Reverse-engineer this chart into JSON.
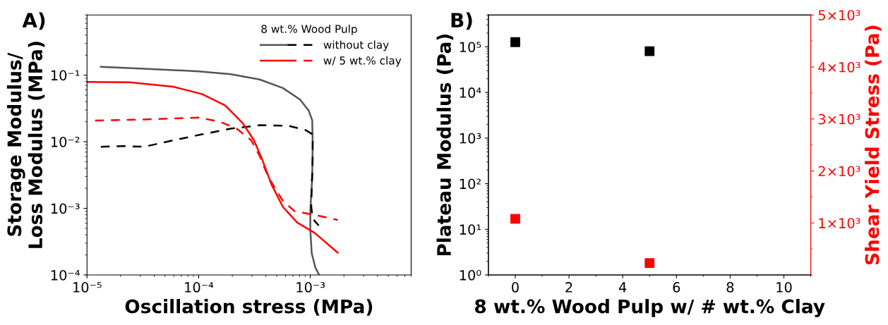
{
  "chart_data": [
    {
      "type": "line",
      "title": "A)",
      "xlabel": "Oscillation stress (MPa)",
      "ylabel": "Storage Modulus/\nLoss Modulus (MPa)",
      "log": "xy",
      "legend": "top right",
      "legend_title": "8 wt.% Wood Pulp",
      "grid": false,
      "marker": "none",
      "xlim": [
        1e-05,
        0.008
      ],
      "ylim": [
        0.0001,
        0.8
      ],
      "xticks": [
        {
          "value": 1e-05,
          "label": "10⁻⁵"
        },
        {
          "value": 0.0001,
          "label": "10⁻⁴"
        },
        {
          "value": 0.001,
          "label": "10⁻³"
        }
      ],
      "yticks": [
        {
          "value": 0.0001,
          "label": "10⁻⁴"
        },
        {
          "value": 0.001,
          "label": "10⁻³"
        },
        {
          "value": 0.01,
          "label": "10⁻²"
        },
        {
          "value": 0.1,
          "label": "10⁻¹"
        }
      ],
      "series": [
        {
          "color": "#555555",
          "line_style": "solid",
          "x": [
            1.33e-05,
            3.26e-05,
            0.0001,
            0.000194,
            0.000352,
            0.000568,
            0.00081,
            0.00097,
            0.00104,
            0.00105,
            0.00104,
            0.001,
            0.001,
            0.00103,
            0.00111,
            0.0012
          ],
          "values": [
            0.133,
            0.125,
            0.114,
            0.103,
            0.086,
            0.064,
            0.043,
            0.029,
            0.021,
            0.0095,
            0.0029,
            0.00095,
            0.00047,
            0.00021,
            0.000129,
            0.0001
          ]
        },
        {
          "name": "without clay",
          "color": "#000000",
          "line_style": "dashed",
          "x": [
            1.33e-05,
            2.14e-05,
            3.26e-05,
            5.9e-05,
            0.000107,
            0.000194,
            0.000352,
            0.00064,
            0.00091,
            0.00105,
            0.00105,
            0.00103,
            0.00102,
            0.00105,
            0.00119
          ],
          "values": [
            0.0084,
            0.0086,
            0.0084,
            0.0105,
            0.0129,
            0.0157,
            0.0177,
            0.0173,
            0.0149,
            0.0129,
            0.0058,
            0.0021,
            0.00105,
            0.0007,
            0.00055
          ]
        },
        {
          "color": "#ff0000",
          "line_style": "solid",
          "x": [
            1e-05,
            2.42e-05,
            5.9e-05,
            0.000107,
            0.000173,
            0.000247,
            0.000313,
            0.000374,
            0.000448,
            0.000568,
            0.000766,
            0.00109,
            0.00176
          ],
          "values": [
            0.079,
            0.078,
            0.067,
            0.052,
            0.035,
            0.0192,
            0.0105,
            0.0052,
            0.0023,
            0.00105,
            0.00061,
            0.00043,
            0.000216
          ]
        },
        {
          "name": "w/ 5 wt.% clay",
          "color": "#ff0000",
          "line_style": "dashed",
          "x": [
            1.18e-05,
            3.26e-05,
            0.0001,
            0.000153,
            0.000219,
            0.000296,
            0.000352,
            0.000422,
            0.000568,
            0.00072,
            0.00116,
            0.00176
          ],
          "values": [
            0.0208,
            0.0216,
            0.023,
            0.0201,
            0.0157,
            0.0105,
            0.0061,
            0.0029,
            0.00129,
            0.00091,
            0.00078,
            0.00067
          ]
        }
      ]
    },
    {
      "type": "scatter",
      "title": "B)",
      "xlabel": "8 wt.% Wood Pulp w/ # wt.% Clay",
      "ylabel": "Plateau Modulus (Pa)",
      "y2label": "Shear Yield Stress (Pa)",
      "log": "y",
      "legend": false,
      "grid": false,
      "marker": "square",
      "xlim": [
        -1,
        11
      ],
      "xticks": [
        0,
        2,
        4,
        6,
        8,
        10
      ],
      "ylim": [
        1,
        500000
      ],
      "yticks": [
        {
          "value": 1,
          "label": "10⁰"
        },
        {
          "value": 10,
          "label": "10¹"
        },
        {
          "value": 100,
          "label": "10²"
        },
        {
          "value": 1000,
          "label": "10³"
        },
        {
          "value": 10000,
          "label": "10⁴"
        },
        {
          "value": 100000,
          "label": "10⁵"
        }
      ],
      "y2lim": [
        0,
        5000
      ],
      "y2ticks": [
        {
          "value": 1000,
          "label": "1×10³"
        },
        {
          "value": 2000,
          "label": "2×10³"
        },
        {
          "value": 3000,
          "label": "3×10³"
        },
        {
          "value": 4000,
          "label": "4×10³"
        },
        {
          "value": 5000,
          "label": "5×10³"
        }
      ],
      "series": [
        {
          "color": "#000000",
          "x": [
            0,
            5
          ],
          "values": [
            127000,
            80000
          ]
        },
        {
          "color": "#ff0000",
          "axis": "y2",
          "x": [
            0,
            5
          ],
          "values": [
            1080,
            230
          ]
        }
      ]
    }
  ]
}
